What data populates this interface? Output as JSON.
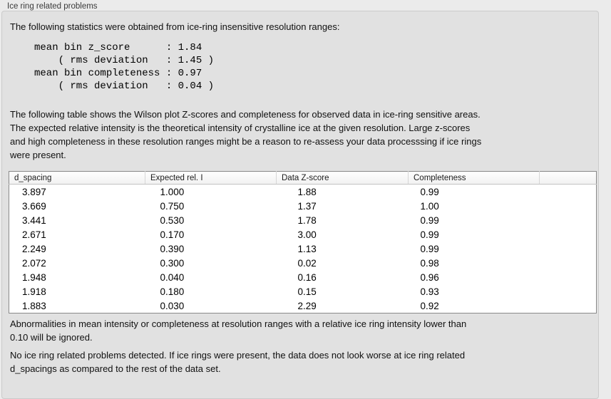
{
  "panel": {
    "title": "Ice ring related problems"
  },
  "intro": "The following statistics were obtained from ice-ring insensitive resolution ranges:",
  "stats_block": {
    "lines": [
      "mean bin z_score      : 1.84",
      "    ( rms deviation   : 1.45 )",
      "mean bin completeness : 0.97",
      "    ( rms deviation   : 0.04 )"
    ]
  },
  "description": {
    "lines": [
      "The following table shows the Wilson plot Z-scores and completeness for observed data in ice-ring sensitive areas.",
      "The expected relative intensity is the theoretical intensity of crystalline ice at the given resolution. Large z-scores",
      "and high completeness in these resolution ranges might be a reason to re-assess your data processsing if ice rings",
      "were present."
    ]
  },
  "table": {
    "columns": [
      "d_spacing",
      "Expected rel. I",
      "Data Z-score",
      "Completeness"
    ],
    "rows": [
      [
        "3.897",
        "1.000",
        "1.88",
        "0.99"
      ],
      [
        "3.669",
        "0.750",
        "1.37",
        "1.00"
      ],
      [
        "3.441",
        "0.530",
        "1.78",
        "0.99"
      ],
      [
        "2.671",
        "0.170",
        "3.00",
        "0.99"
      ],
      [
        "2.249",
        "0.390",
        "1.13",
        "0.99"
      ],
      [
        "2.072",
        "0.300",
        "0.02",
        "0.98"
      ],
      [
        "1.948",
        "0.040",
        "0.16",
        "0.96"
      ],
      [
        "1.918",
        "0.180",
        "0.15",
        "0.93"
      ],
      [
        "1.883",
        "0.030",
        "2.29",
        "0.92"
      ]
    ]
  },
  "note": {
    "lines": [
      "Abnormalities in mean intensity or completeness at resolution ranges with a relative ice ring intensity lower than",
      "0.10 will be ignored."
    ]
  },
  "conclusion": {
    "lines": [
      "No ice ring related problems detected. If ice rings were present, the data does not look worse at ice ring related",
      "d_spacings as compared to the rest of the data set."
    ]
  },
  "colors": {
    "page_background": "#ebebeb",
    "groupbox_background": "#e1e1e1",
    "groupbox_border": "#cbcbcb",
    "table_border": "#8a8a8a",
    "table_header_background": "#f5f5f5",
    "text": "#101010"
  }
}
